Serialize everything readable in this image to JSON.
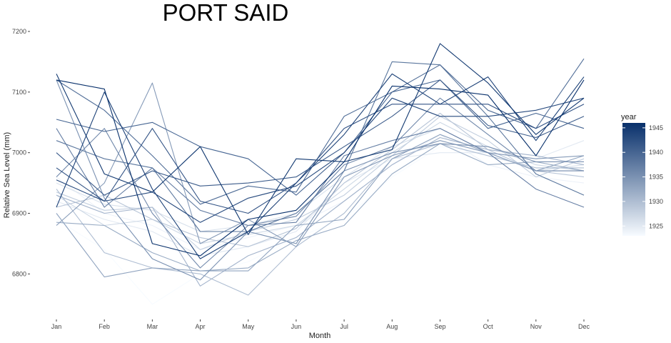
{
  "chart_data": {
    "type": "line",
    "title": "PORT SAID",
    "xlabel": "Month",
    "ylabel": "Relative Sea Level (mm)",
    "categories": [
      "Jan",
      "Feb",
      "Mar",
      "Apr",
      "May",
      "Jun",
      "Jul",
      "Aug",
      "Sep",
      "Oct",
      "Nov",
      "Dec"
    ],
    "y_ticks": [
      6800,
      6900,
      7000,
      7100,
      7200
    ],
    "ylim": [
      6745,
      7200
    ],
    "grid": false,
    "legend": {
      "title": "year",
      "type": "continuous-colorbar",
      "position": "right",
      "range": [
        1923,
        1946
      ],
      "ticks": [
        1925,
        1930,
        1935,
        1940,
        1945
      ],
      "color_low": "#f7fbff",
      "color_high": "#08306b"
    },
    "series": [
      {
        "year": 1923,
        "values": [
          6890,
          6840,
          6750,
          6800,
          6820,
          6860,
          6890,
          6960,
          7010,
          7000,
          6975,
          6960
        ]
      },
      {
        "year": 1924,
        "values": [
          6960,
          6900,
          6880,
          6840,
          6860,
          6880,
          6920,
          6980,
          7030,
          6980,
          6960,
          6950
        ]
      },
      {
        "year": 1925,
        "values": [
          6920,
          6890,
          6870,
          6830,
          6845,
          6870,
          6950,
          6990,
          7000,
          7000,
          6990,
          7020
        ]
      },
      {
        "year": 1926,
        "values": [
          6950,
          6915,
          6905,
          6870,
          6880,
          6900,
          6960,
          7010,
          7040,
          7000,
          6970,
          6980
        ]
      },
      {
        "year": 1927,
        "values": [
          6930,
          6880,
          6890,
          6850,
          6865,
          6880,
          6940,
          7000,
          7050,
          7010,
          6980,
          6970
        ]
      },
      {
        "year": 1928,
        "values": [
          6935,
          6905,
          6910,
          6840,
          6870,
          6890,
          6930,
          6995,
          7060,
          7020,
          6960,
          6990
        ]
      },
      {
        "year": 1929,
        "values": [
          6910,
          6930,
          6890,
          6860,
          6845,
          6875,
          6950,
          7005,
          7065,
          7005,
          6970,
          6960
        ]
      },
      {
        "year": 1930,
        "values": [
          6940,
          6835,
          6810,
          6800,
          6765,
          6845,
          6900,
          6990,
          7015,
          6995,
          6975,
          6975
        ]
      },
      {
        "year": 1931,
        "values": [
          6930,
          6900,
          6910,
          6780,
          6830,
          6860,
          6920,
          6980,
          7025,
          7005,
          6995,
          6980
        ]
      },
      {
        "year": 1932,
        "values": [
          6885,
          6880,
          6835,
          6805,
          6810,
          6855,
          6880,
          6965,
          7015,
          6980,
          6985,
          6970
        ]
      },
      {
        "year": 1933,
        "values": [
          6900,
          6795,
          6810,
          6805,
          6805,
          6880,
          6890,
          6990,
          7030,
          7000,
          6970,
          6995
        ]
      },
      {
        "year": 1934,
        "values": [
          6880,
          6950,
          7115,
          6850,
          6890,
          6845,
          6960,
          6995,
          7020,
          7000,
          6990,
          6995
        ]
      },
      {
        "year": 1935,
        "values": [
          7120,
          6925,
          6825,
          6790,
          6870,
          6850,
          6970,
          7000,
          7015,
          7010,
          6985,
          6985
        ]
      },
      {
        "year": 1936,
        "values": [
          6960,
          7040,
          6900,
          6810,
          6880,
          6895,
          6980,
          7010,
          7090,
          7030,
          6970,
          6970
        ]
      },
      {
        "year": 1937,
        "values": [
          7040,
          6910,
          6975,
          6905,
          6880,
          6885,
          6995,
          7020,
          7040,
          7000,
          6940,
          6910
        ]
      },
      {
        "year": 1938,
        "values": [
          7020,
          6990,
          6975,
          6870,
          6870,
          6900,
          6970,
          7150,
          7145,
          7060,
          6965,
          6930
        ]
      },
      {
        "year": 1939,
        "values": [
          7120,
          7070,
          6995,
          6915,
          6945,
          6935,
          7060,
          7100,
          7145,
          7070,
          7040,
          7155
        ]
      },
      {
        "year": 1940,
        "values": [
          7055,
          7035,
          7050,
          7010,
          6990,
          6930,
          7000,
          7100,
          7120,
          7040,
          7065,
          7040
        ]
      },
      {
        "year": 1941,
        "values": [
          7000,
          6930,
          6970,
          6945,
          6950,
          6960,
          7010,
          7060,
          7120,
          7045,
          7025,
          7060
        ]
      },
      {
        "year": 1942,
        "values": [
          6975,
          6920,
          7040,
          6920,
          6900,
          6950,
          7040,
          7080,
          7080,
          7080,
          7040,
          7080
        ]
      },
      {
        "year": 1943,
        "values": [
          6955,
          6920,
          6935,
          6885,
          6925,
          6945,
          7000,
          7090,
          7060,
          7060,
          7070,
          7090
        ]
      },
      {
        "year": 1944,
        "values": [
          6910,
          7100,
          6940,
          6825,
          6870,
          6950,
          7030,
          7130,
          7080,
          7125,
          7020,
          7125
        ]
      },
      {
        "year": 1945,
        "values": [
          7130,
          6965,
          6935,
          7010,
          6865,
          6990,
          6985,
          7005,
          7180,
          7115,
          7030,
          7090
        ]
      },
      {
        "year": 1946,
        "values": [
          7120,
          7105,
          6850,
          6830,
          6890,
          6905,
          6985,
          7110,
          7105,
          7095,
          6995,
          7120
        ]
      }
    ]
  }
}
